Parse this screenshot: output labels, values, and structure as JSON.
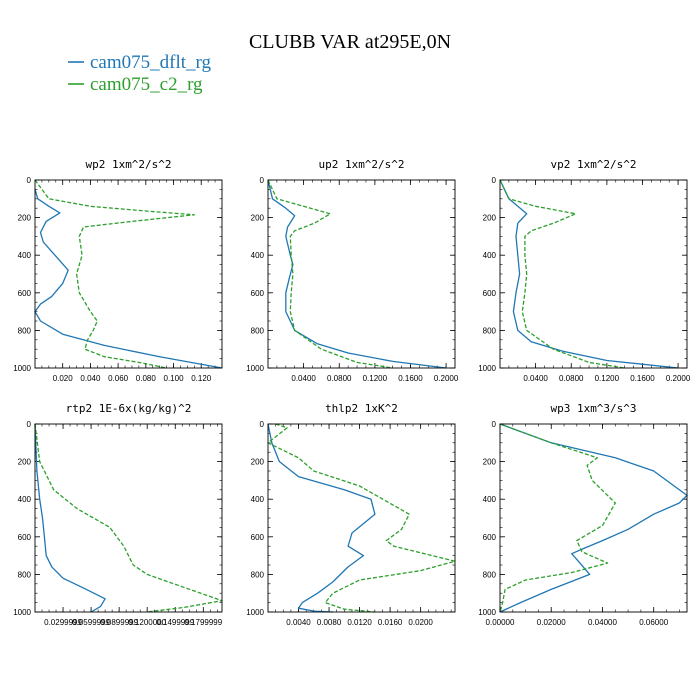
{
  "figure": {
    "title": "CLUBB VAR at295E,0N",
    "legend": [
      {
        "label": "cam075_dflt_rg",
        "color": "#1f77b4"
      },
      {
        "label": "cam075_c2_rg",
        "color": "#2ca02c"
      }
    ]
  },
  "chart_data": [
    {
      "type": "line",
      "title": "wp2  1xm^2/s^2",
      "xlim": [
        0,
        0.135
      ],
      "ylim": [
        1000,
        0
      ],
      "y_reversed": true,
      "grid": false,
      "xticks": [
        0.02,
        0.04,
        0.06,
        0.08,
        0.1,
        0.12
      ],
      "xticklabels": [
        "0.020",
        "0.040",
        "0.060",
        "0.080",
        "0.100",
        "0.120"
      ],
      "yticks": [
        0,
        200,
        400,
        600,
        800,
        1000
      ],
      "series": [
        {
          "name": "cam075_dflt_rg",
          "color": "#1f77b4",
          "dash": "solid",
          "x": [
            0.0,
            0.002,
            0.01,
            0.018,
            0.008,
            0.004,
            0.006,
            0.012,
            0.018,
            0.024,
            0.02,
            0.012,
            0.004,
            0.0,
            0.004,
            0.02,
            0.05,
            0.09,
            0.135
          ],
          "y": [
            50,
            100,
            140,
            175,
            220,
            280,
            330,
            380,
            430,
            480,
            550,
            620,
            660,
            700,
            750,
            820,
            880,
            940,
            1000
          ]
        },
        {
          "name": "cam075_c2_rg",
          "color": "#2ca02c",
          "dash": "dash",
          "x": [
            0.0,
            0.01,
            0.04,
            0.08,
            0.115,
            0.07,
            0.035,
            0.032,
            0.034,
            0.03,
            0.032,
            0.04,
            0.045,
            0.042,
            0.038,
            0.036,
            0.05,
            0.075,
            0.095
          ],
          "y": [
            0,
            100,
            140,
            165,
            185,
            220,
            250,
            300,
            400,
            500,
            600,
            700,
            750,
            800,
            850,
            900,
            940,
            970,
            1000
          ]
        }
      ]
    },
    {
      "type": "line",
      "title": "up2  1xm^2/s^2",
      "xlim": [
        0,
        0.21
      ],
      "ylim": [
        1000,
        0
      ],
      "y_reversed": true,
      "grid": false,
      "xticks": [
        0.04,
        0.08,
        0.12,
        0.16,
        0.2
      ],
      "xticklabels": [
        "0.0400",
        "0.0800",
        "0.1200",
        "0.1600",
        "0.2000"
      ],
      "yticks": [
        0,
        200,
        400,
        600,
        800,
        1000
      ],
      "series": [
        {
          "name": "cam075_dflt_rg",
          "color": "#1f77b4",
          "dash": "solid",
          "x": [
            0.0,
            0.005,
            0.02,
            0.03,
            0.022,
            0.02,
            0.025,
            0.028,
            0.024,
            0.02,
            0.02,
            0.03,
            0.055,
            0.09,
            0.14,
            0.2
          ],
          "y": [
            0,
            100,
            150,
            190,
            250,
            300,
            400,
            450,
            520,
            600,
            700,
            800,
            870,
            920,
            965,
            1000
          ]
        },
        {
          "name": "cam075_c2_rg",
          "color": "#2ca02c",
          "dash": "dash",
          "x": [
            0.0,
            0.01,
            0.04,
            0.07,
            0.052,
            0.03,
            0.025,
            0.026,
            0.028,
            0.026,
            0.025,
            0.03,
            0.06,
            0.1,
            0.14
          ],
          "y": [
            0,
            100,
            140,
            180,
            230,
            270,
            300,
            400,
            500,
            600,
            700,
            800,
            900,
            970,
            1000
          ]
        }
      ]
    },
    {
      "type": "line",
      "title": "vp2  1xm^2/s^2",
      "xlim": [
        0,
        0.21
      ],
      "ylim": [
        1000,
        0
      ],
      "y_reversed": true,
      "grid": false,
      "xticks": [
        0.04,
        0.08,
        0.12,
        0.16,
        0.2
      ],
      "xticklabels": [
        "0.0400",
        "0.0800",
        "0.1200",
        "0.1600",
        "0.2000"
      ],
      "yticks": [
        0,
        200,
        400,
        600,
        800,
        1000
      ],
      "series": [
        {
          "name": "cam075_dflt_rg",
          "color": "#1f77b4",
          "dash": "solid",
          "x": [
            0.0,
            0.01,
            0.03,
            0.02,
            0.018,
            0.02,
            0.022,
            0.018,
            0.015,
            0.02,
            0.035,
            0.07,
            0.12,
            0.2
          ],
          "y": [
            0,
            100,
            180,
            230,
            300,
            400,
            500,
            600,
            700,
            800,
            860,
            910,
            960,
            1000
          ]
        },
        {
          "name": "cam075_c2_rg",
          "color": "#2ca02c",
          "dash": "dash",
          "x": [
            0.0,
            0.01,
            0.04,
            0.085,
            0.06,
            0.035,
            0.028,
            0.028,
            0.03,
            0.028,
            0.025,
            0.03,
            0.06,
            0.1,
            0.14
          ],
          "y": [
            0,
            100,
            140,
            180,
            230,
            270,
            300,
            400,
            500,
            600,
            700,
            800,
            900,
            970,
            1000
          ]
        }
      ]
    },
    {
      "type": "line",
      "title": "rtp2  1E-6x(kg/kg)^2",
      "xlim": [
        0,
        0.2
      ],
      "ylim": [
        1000,
        0
      ],
      "y_reversed": true,
      "grid": false,
      "xticks": [
        0.03,
        0.06,
        0.09,
        0.12,
        0.15,
        0.18
      ],
      "xticklabels": [
        "0.0299999",
        "0.0599999",
        "0.0899999",
        "0.1200000",
        "0.1499999",
        "0.1799999"
      ],
      "yticks": [
        0,
        200,
        400,
        600,
        800,
        1000
      ],
      "series": [
        {
          "name": "cam075_dflt_rg",
          "color": "#1f77b4",
          "dash": "solid",
          "x": [
            0.0,
            0.002,
            0.005,
            0.008,
            0.01,
            0.012,
            0.018,
            0.03,
            0.055,
            0.075,
            0.07,
            0.06
          ],
          "y": [
            0,
            250,
            400,
            500,
            600,
            700,
            760,
            820,
            880,
            930,
            970,
            1000
          ]
        },
        {
          "name": "cam075_c2_rg",
          "color": "#2ca02c",
          "dash": "dash",
          "x": [
            0.0,
            0.005,
            0.02,
            0.045,
            0.08,
            0.095,
            0.105,
            0.12,
            0.16,
            0.2,
            0.16,
            0.12
          ],
          "y": [
            0,
            200,
            350,
            450,
            550,
            650,
            750,
            800,
            870,
            940,
            975,
            1000
          ]
        }
      ]
    },
    {
      "type": "line",
      "title": "thlp2  1xK^2",
      "xlim": [
        0,
        0.0245
      ],
      "ylim": [
        1000,
        0
      ],
      "y_reversed": true,
      "grid": false,
      "xticks": [
        0.004,
        0.008,
        0.012,
        0.016,
        0.02
      ],
      "xticklabels": [
        "0.0040",
        "0.0080",
        "0.0120",
        "0.0160",
        "0.0200"
      ],
      "yticks": [
        0,
        200,
        400,
        600,
        800,
        1000
      ],
      "series": [
        {
          "name": "cam075_dflt_rg",
          "color": "#1f77b4",
          "dash": "solid",
          "x": [
            0.0,
            0.0005,
            0.0015,
            0.004,
            0.01,
            0.0135,
            0.014,
            0.011,
            0.0105,
            0.0125,
            0.0105,
            0.0085,
            0.0065,
            0.0045,
            0.004,
            0.006,
            0.0085
          ],
          "y": [
            0,
            100,
            200,
            280,
            350,
            400,
            480,
            580,
            650,
            700,
            760,
            840,
            900,
            950,
            980,
            995,
            1000
          ]
        },
        {
          "name": "cam075_c2_rg",
          "color": "#2ca02c",
          "dash": "dash",
          "x": [
            0.001,
            0.0025,
            0.0,
            0.004,
            0.006,
            0.012,
            0.0185,
            0.0175,
            0.0155,
            0.0165,
            0.0245,
            0.02,
            0.012,
            0.0085,
            0.0075,
            0.01,
            0.014
          ],
          "y": [
            0,
            20,
            100,
            180,
            250,
            330,
            480,
            560,
            620,
            650,
            730,
            780,
            830,
            900,
            950,
            985,
            1000
          ]
        }
      ]
    },
    {
      "type": "line",
      "title": "wp3  1xm^3/s^3",
      "xlim": [
        0,
        0.073
      ],
      "ylim": [
        1000,
        0
      ],
      "y_reversed": true,
      "grid": false,
      "xticks": [
        0.0,
        0.02,
        0.04,
        0.06
      ],
      "xticklabels": [
        "0.00000",
        "0.02000",
        "0.04000",
        "0.06000"
      ],
      "yticks": [
        0,
        200,
        400,
        600,
        800,
        1000
      ],
      "series": [
        {
          "name": "cam075_dflt_rg",
          "color": "#1f77b4",
          "dash": "solid",
          "x": [
            0.0,
            0.02,
            0.045,
            0.06,
            0.073,
            0.07,
            0.06,
            0.05,
            0.04,
            0.033,
            0.028,
            0.03,
            0.035,
            0.02,
            0.008,
            0.0
          ],
          "y": [
            0,
            100,
            180,
            250,
            380,
            420,
            480,
            560,
            620,
            660,
            690,
            720,
            800,
            880,
            950,
            1000
          ]
        },
        {
          "name": "cam075_c2_rg",
          "color": "#2ca02c",
          "dash": "dash",
          "x": [
            0.0,
            0.02,
            0.038,
            0.034,
            0.036,
            0.045,
            0.04,
            0.03,
            0.032,
            0.042,
            0.028,
            0.01,
            0.002,
            0.001,
            0.0
          ],
          "y": [
            0,
            100,
            180,
            220,
            300,
            420,
            540,
            620,
            680,
            740,
            790,
            830,
            880,
            950,
            1000
          ]
        }
      ]
    }
  ]
}
